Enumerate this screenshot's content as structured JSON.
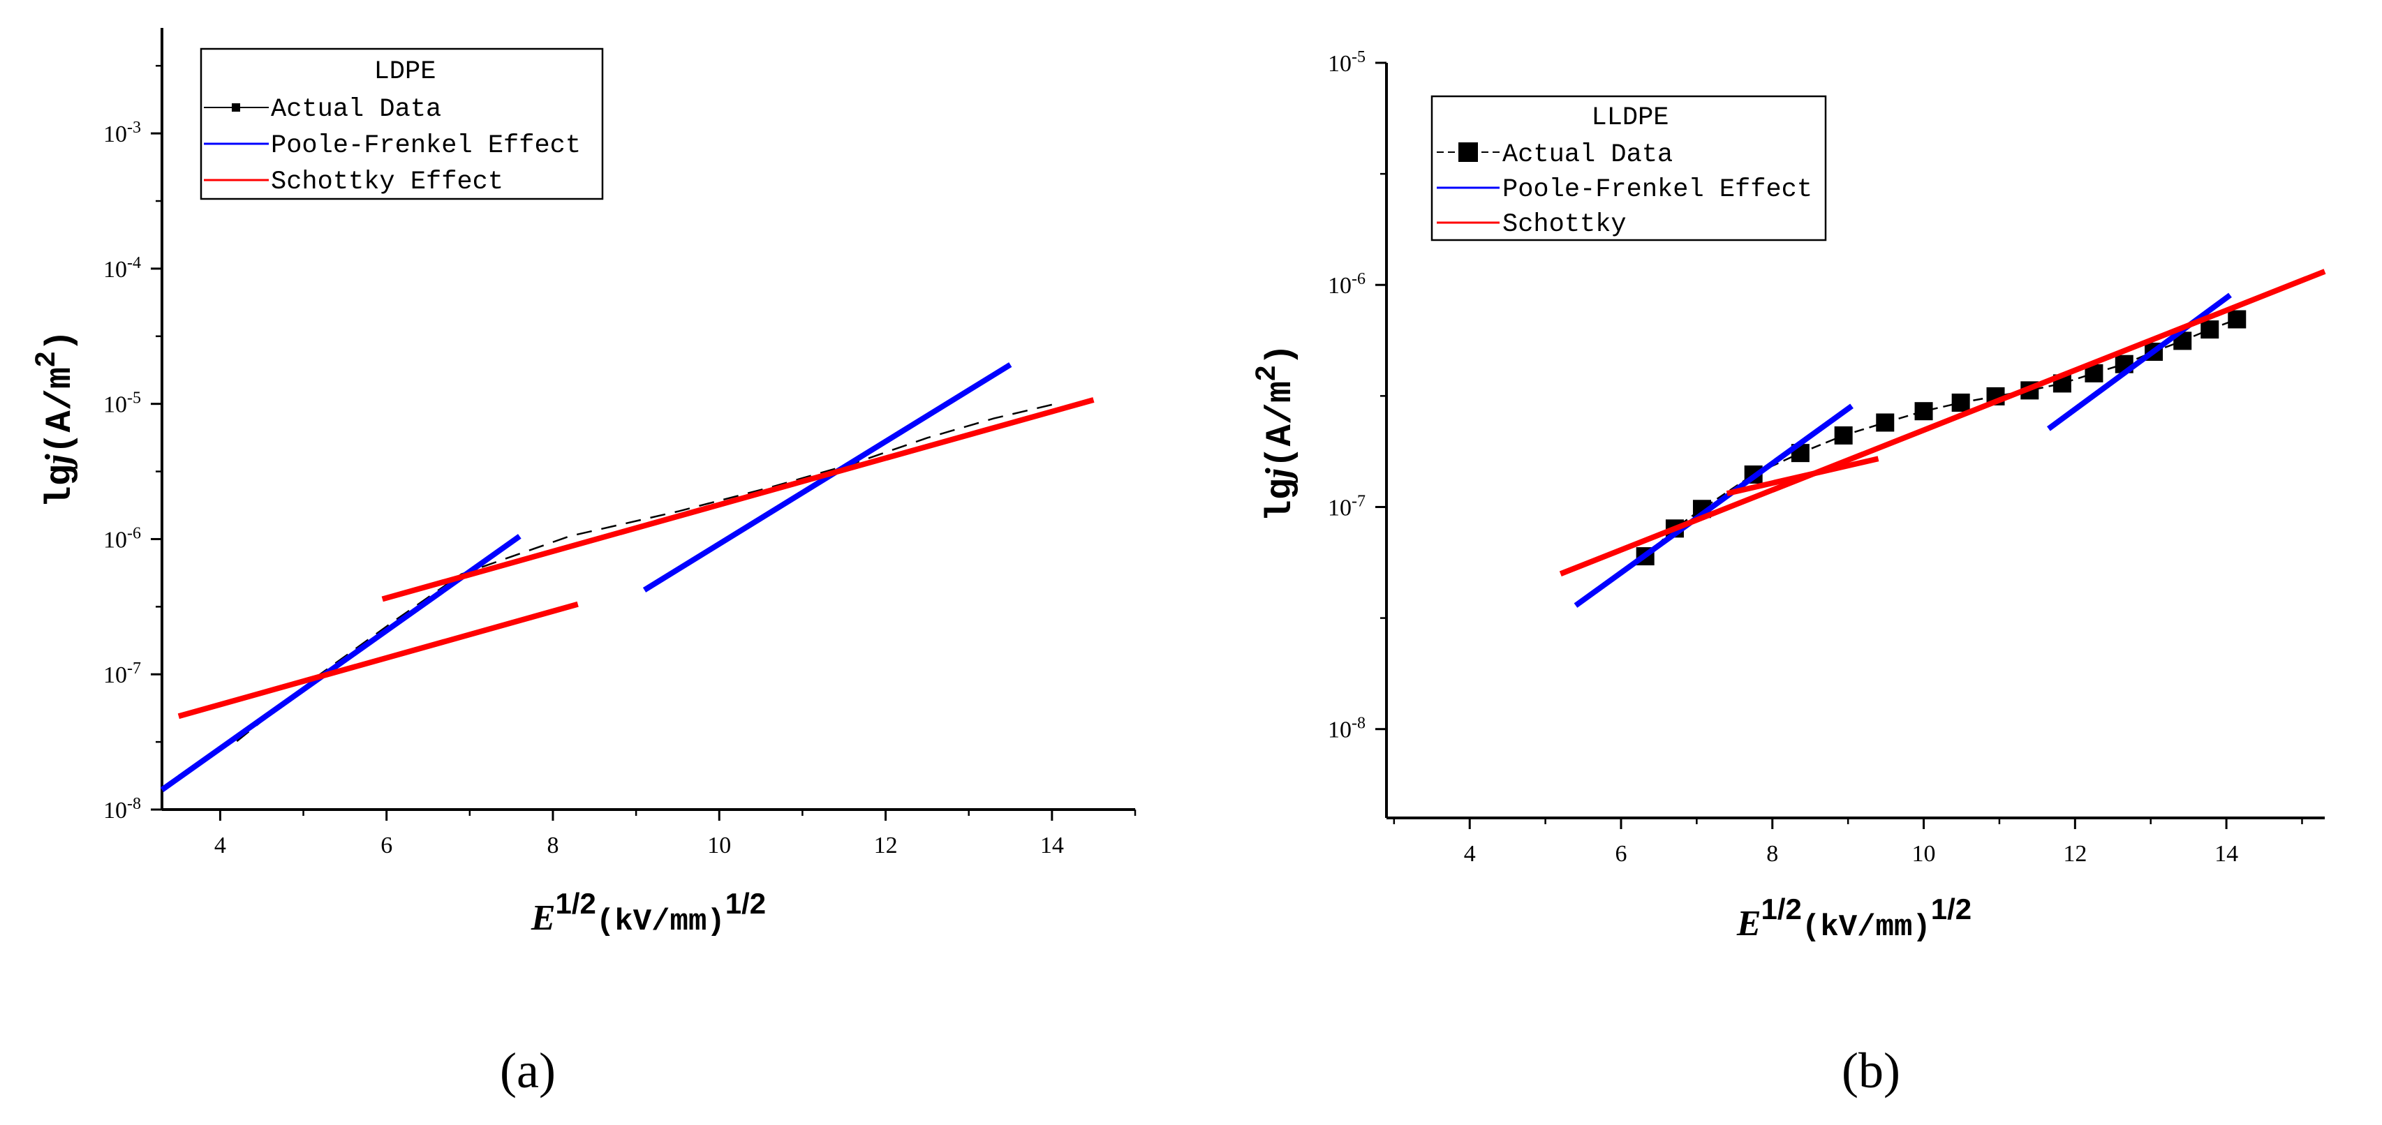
{
  "colors": {
    "actual": "#000000",
    "poole_frenkel": "#0000ff",
    "schottky": "#ff0000"
  },
  "chart_data": [
    {
      "type": "line",
      "panel": "a",
      "caption": "(a)",
      "legend_title": "LDPE",
      "legend_position": "top-left",
      "legend": [
        {
          "key": "actual",
          "label": "Actual Data"
        },
        {
          "key": "poole_frenkel",
          "label": "Poole-Frenkel Effect"
        },
        {
          "key": "schottky",
          "label": "Schottky Effect"
        }
      ],
      "xlabel": {
        "var": "E",
        "sup": "1/2",
        "unit": "(kV/mm)",
        "unit_sup": "1/2"
      },
      "ylabel": {
        "prefix": "lg",
        "var": "j",
        "unit": "(A/m",
        "unit_sup": "2",
        "close": ")"
      },
      "xlim": [
        3.3,
        15.0
      ],
      "ylim_log10": [
        -8,
        -2.22
      ],
      "y_scale": "log",
      "xticks": [
        4,
        6,
        8,
        10,
        12,
        14
      ],
      "xtick_labels": [
        "4",
        "6",
        "8",
        "10",
        "12",
        "14"
      ],
      "yticks_exp": [
        -8,
        -7,
        -6,
        -5,
        -4,
        -3
      ],
      "ytick_labels": [
        {
          "base": "10",
          "exp": "-8"
        },
        {
          "base": "10",
          "exp": "-7"
        },
        {
          "base": "10",
          "exp": "-6"
        },
        {
          "base": "10",
          "exp": "-5"
        },
        {
          "base": "10",
          "exp": "-4"
        },
        {
          "base": "10",
          "exp": "-3"
        }
      ],
      "series": [
        {
          "name": "Actual Data",
          "key": "actual",
          "style": "dashed",
          "markers": false,
          "x": [
            4.2,
            5.2,
            6.1,
            6.9,
            8.2,
            9.5,
            10.6,
            11.6,
            12.5,
            13.3,
            14.1
          ],
          "y": [
            3.2e-08,
            1e-07,
            2.5e-07,
            5.5e-07,
            1.05e-06,
            1.6e-06,
            2.4e-06,
            3.6e-06,
            5.6e-06,
            7.8e-06,
            1.02e-05
          ]
        },
        {
          "name": "Poole-Frenkel Effect",
          "key": "poole_frenkel",
          "style": "solid",
          "segments": [
            {
              "x": [
                3.3,
                7.6
              ],
              "y": [
                1.4e-08,
                1.05e-06
              ]
            },
            {
              "x": [
                9.1,
                13.5
              ],
              "y": [
                4.2e-07,
                1.95e-05
              ]
            }
          ]
        },
        {
          "name": "Schottky Effect",
          "key": "schottky",
          "style": "solid",
          "segments": [
            {
              "x": [
                3.5,
                8.3
              ],
              "y": [
                4.9e-08,
                3.3e-07
              ]
            },
            {
              "x": [
                5.95,
                14.5
              ],
              "y": [
                3.6e-07,
                1.07e-05
              ]
            }
          ]
        }
      ]
    },
    {
      "type": "line",
      "panel": "b",
      "caption": "(b)",
      "legend_title": "LLDPE",
      "legend_position": "top-left",
      "legend": [
        {
          "key": "actual",
          "label": "Actual Data"
        },
        {
          "key": "poole_frenkel",
          "label": "Poole-Frenkel Effect"
        },
        {
          "key": "schottky",
          "label": "Schottky"
        }
      ],
      "xlabel": {
        "var": "E",
        "sup": "1/2",
        "unit": "(kV/mm)",
        "unit_sup": "1/2"
      },
      "ylabel": {
        "prefix": "lg",
        "var": "j",
        "unit": "(A/m",
        "unit_sup": "2",
        "close": ")"
      },
      "xlim": [
        2.9,
        15.3
      ],
      "ylim_log10": [
        -8.4,
        -5.0
      ],
      "y_scale": "log",
      "xticks": [
        4,
        6,
        8,
        10,
        12,
        14
      ],
      "xtick_labels": [
        "4",
        "6",
        "8",
        "10",
        "12",
        "14"
      ],
      "yticks_exp": [
        -8,
        -7,
        -6,
        -5
      ],
      "ytick_labels": [
        {
          "base": "10",
          "exp": "-8"
        },
        {
          "base": "10",
          "exp": "-7"
        },
        {
          "base": "10",
          "exp": "-6"
        },
        {
          "base": "10",
          "exp": "-5"
        }
      ],
      "series": [
        {
          "name": "Actual Data",
          "key": "actual",
          "style": "dashed",
          "markers": true,
          "x": [
            6.32,
            6.71,
            7.07,
            7.75,
            8.37,
            8.94,
            9.49,
            10.0,
            10.49,
            10.95,
            11.4,
            11.83,
            12.25,
            12.65,
            13.04,
            13.42,
            13.78,
            14.14
          ],
          "y": [
            6e-08,
            8e-08,
            9.8e-08,
            1.4e-07,
            1.75e-07,
            2.1e-07,
            2.4e-07,
            2.7e-07,
            2.95e-07,
            3.15e-07,
            3.35e-07,
            3.6e-07,
            4e-07,
            4.4e-07,
            5e-07,
            5.6e-07,
            6.3e-07,
            7e-07
          ]
        },
        {
          "name": "Poole-Frenkel Effect",
          "key": "poole_frenkel",
          "style": "solid",
          "segments": [
            {
              "x": [
                5.4,
                9.05
              ],
              "y": [
                3.6e-08,
                2.85e-07
              ]
            },
            {
              "x": [
                11.65,
                14.05
              ],
              "y": [
                2.25e-07,
                9e-07
              ]
            }
          ]
        },
        {
          "name": "Schottky",
          "key": "schottky",
          "style": "solid",
          "segments": [
            {
              "x": [
                5.2,
                15.3
              ],
              "y": [
                5e-08,
                1.15e-06
              ]
            },
            {
              "x": [
                7.4,
                9.4
              ],
              "y": [
                1.15e-07,
                1.65e-07
              ]
            }
          ]
        }
      ]
    }
  ]
}
